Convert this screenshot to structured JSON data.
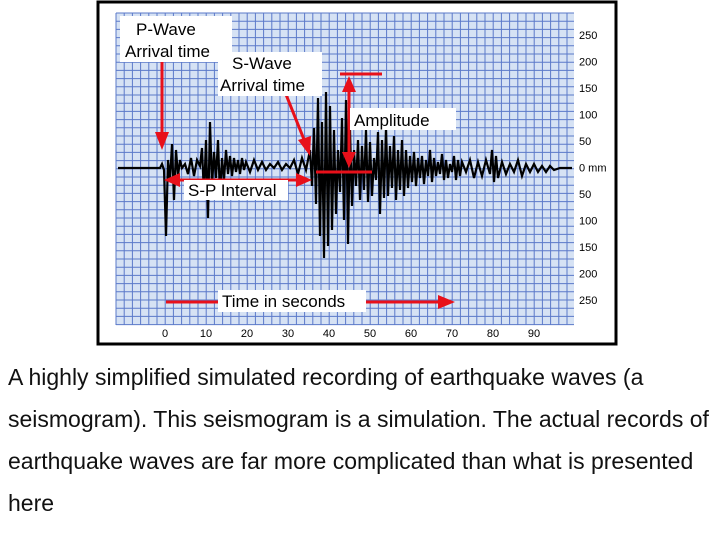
{
  "figure": {
    "labels": {
      "p_wave_arrival": [
        "P-Wave",
        "Arrival time"
      ],
      "s_wave_arrival": [
        "S-Wave",
        "Arrival time"
      ],
      "amplitude": "Amplitude",
      "sp_interval": "S-P Interval",
      "time_axis": "Time in seconds"
    },
    "x_ticks": [
      "0",
      "10",
      "20",
      "30",
      "40",
      "50",
      "60",
      "70",
      "80",
      "90"
    ],
    "y_ticks": [
      "250",
      "200",
      "150",
      "100",
      "50",
      "0 mm",
      "50",
      "100",
      "150",
      "200",
      "250"
    ],
    "colors": {
      "grid": "#5b79c9",
      "paper": "#d6e2f4",
      "arrows": "#e8101a",
      "trace": "#000000"
    }
  },
  "caption": "A highly simplified simulated recording of earthquake waves (a seismogram). This seismogram is a simulation. The actual records of earthquake waves are far more complicated than what is presented here"
}
